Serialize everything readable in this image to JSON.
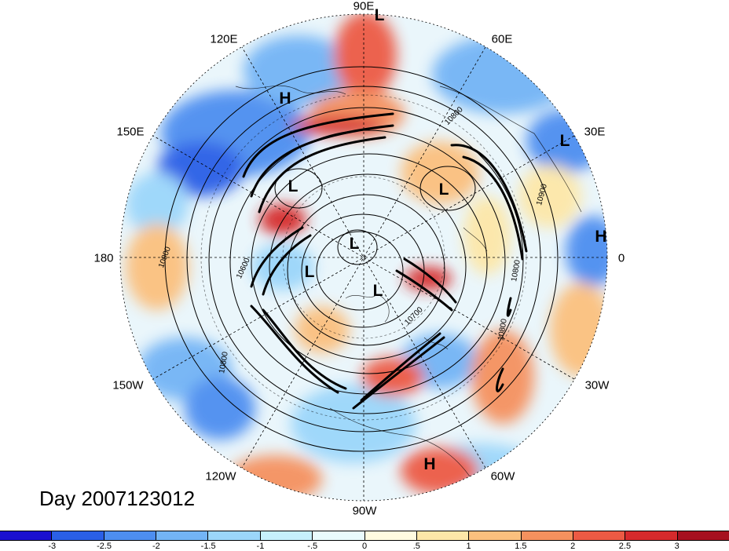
{
  "title": "Day 2007123012",
  "longitude_labels": [
    {
      "id": "90e",
      "text": "90E"
    },
    {
      "id": "60e",
      "text": "60E"
    },
    {
      "id": "30e",
      "text": "30E"
    },
    {
      "id": "0",
      "text": "0"
    },
    {
      "id": "30w",
      "text": "30W"
    },
    {
      "id": "60w",
      "text": "60W"
    },
    {
      "id": "90w",
      "text": "90W"
    },
    {
      "id": "120w",
      "text": "120W"
    },
    {
      "id": "150w",
      "text": "150W"
    },
    {
      "id": "180",
      "text": "180"
    },
    {
      "id": "150e",
      "text": "150E"
    },
    {
      "id": "120e",
      "text": "120E"
    }
  ],
  "pressure_centers": [
    {
      "id": "l-top",
      "text": "L"
    },
    {
      "id": "h-asia",
      "text": "H"
    },
    {
      "id": "l-30e",
      "text": "L"
    },
    {
      "id": "l-siberia",
      "text": "L"
    },
    {
      "id": "l-scandi",
      "text": "L"
    },
    {
      "id": "h-0",
      "text": "H"
    },
    {
      "id": "l-pole1",
      "text": "L"
    },
    {
      "id": "l-pole2",
      "text": "L"
    },
    {
      "id": "l-pole3",
      "text": "L"
    },
    {
      "id": "h-brazil",
      "text": "H"
    }
  ],
  "contour_labels": [
    {
      "id": "c10800a",
      "text": "10800"
    },
    {
      "id": "c10900a",
      "text": "10900"
    },
    {
      "id": "c10900b",
      "text": "10900"
    },
    {
      "id": "c10600",
      "text": "10600"
    },
    {
      "id": "c10800b",
      "text": "10800"
    },
    {
      "id": "c10800c",
      "text": "10800"
    },
    {
      "id": "c10800d",
      "text": "10800"
    },
    {
      "id": "c10700",
      "text": "10700"
    }
  ],
  "colorbar": {
    "colors": [
      "#1a10d0",
      "#2a5fe6",
      "#4d8ef0",
      "#73b4f5",
      "#9bd6fa",
      "#c6f0fc",
      "#e9fbfd",
      "#fffbe0",
      "#fde7a8",
      "#fbc07e",
      "#f5915e",
      "#ec5a44",
      "#d62a2c",
      "#a6101f"
    ],
    "labels": [
      "-3",
      "-2.5",
      "-2",
      "-1.5",
      "-1",
      "-.5",
      "0",
      ".5",
      "1",
      "1.5",
      "2",
      "2.5",
      "3"
    ]
  }
}
